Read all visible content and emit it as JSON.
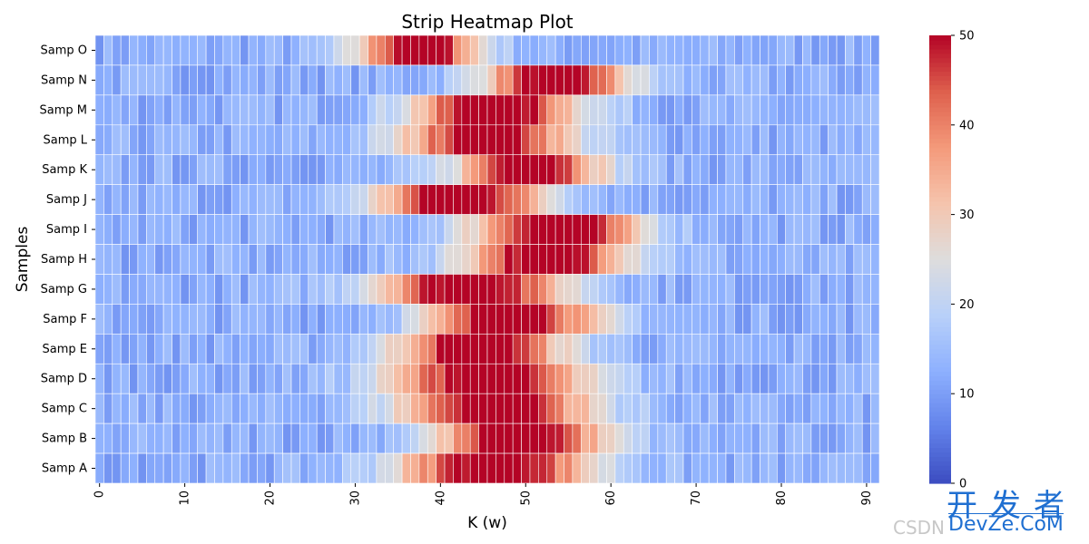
{
  "chart_data": {
    "type": "heatmap",
    "title": "Strip Heatmap Plot",
    "xlabel": "K (w)",
    "ylabel": "Samples",
    "rows": [
      "Samp O",
      "Samp N",
      "Samp M",
      "Samp L",
      "Samp K",
      "Samp J",
      "Samp I",
      "Samp H",
      "Samp G",
      "Samp F",
      "Samp E",
      "Samp D",
      "Samp C",
      "Samp B",
      "Samp A"
    ],
    "n_columns": 92,
    "x_ticks": [
      0,
      10,
      20,
      30,
      40,
      50,
      60,
      70,
      80,
      90
    ],
    "colorbar": {
      "min": 0,
      "max": 50,
      "ticks": [
        0,
        10,
        20,
        30,
        40,
        50
      ],
      "colormap": "coolwarm"
    },
    "peaks": [
      {
        "row": "Samp O",
        "center": 38,
        "width": 5
      },
      {
        "row": "Samp N",
        "center": 54,
        "width": 6
      },
      {
        "row": "Samp M",
        "center": 47,
        "width": 7
      },
      {
        "row": "Samp L",
        "center": 46,
        "width": 7
      },
      {
        "row": "Samp K",
        "center": 51,
        "width": 6
      },
      {
        "row": "Samp J",
        "center": 43,
        "width": 7
      },
      {
        "row": "Samp I",
        "center": 54,
        "width": 7
      },
      {
        "row": "Samp H",
        "center": 53,
        "width": 7
      },
      {
        "row": "Samp G",
        "center": 44,
        "width": 8
      },
      {
        "row": "Samp F",
        "center": 49,
        "width": 7
      },
      {
        "row": "Samp E",
        "center": 45,
        "width": 7
      },
      {
        "row": "Samp D",
        "center": 46,
        "width": 8
      },
      {
        "row": "Samp C",
        "center": 47,
        "width": 8
      },
      {
        "row": "Samp B",
        "center": 50,
        "width": 7
      },
      {
        "row": "Samp A",
        "center": 47,
        "width": 8
      }
    ],
    "peak_value": 50,
    "baseline_value": 12
  },
  "watermark": {
    "cn": "开发者",
    "en": "DevZe.CoM",
    "csdn": "CSDN"
  }
}
